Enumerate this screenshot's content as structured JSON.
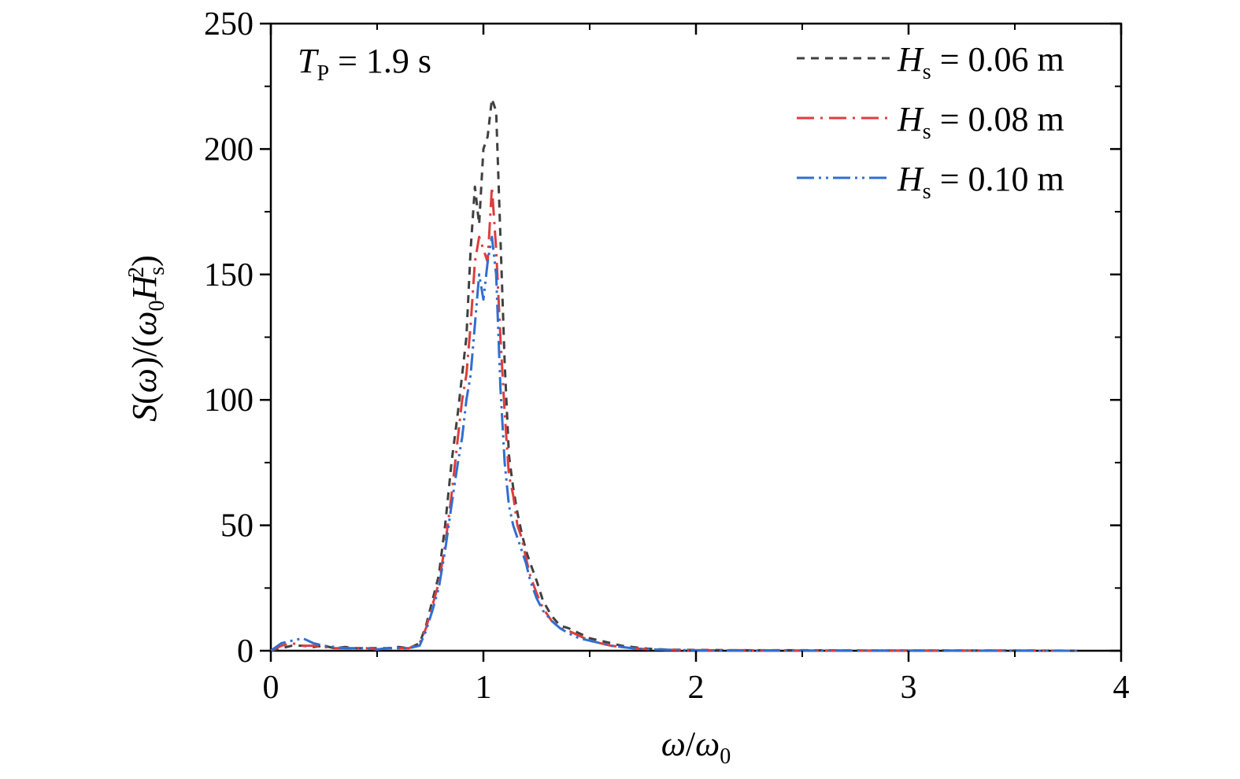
{
  "chart_data": {
    "type": "line",
    "xlabel": {
      "var": "ω",
      "slash": "/",
      "var2": "ω",
      "sub2": "0"
    },
    "ylabel": {
      "a": "S",
      "b": "(",
      "c": "ω",
      "d": ")/(",
      "e": "ω",
      "f": "0",
      "g": "H",
      "h": "s",
      "i": "2",
      "j": ")"
    },
    "xlim": [
      0,
      4
    ],
    "ylim": [
      0,
      250
    ],
    "xticks": [
      0,
      1,
      2,
      3,
      4
    ],
    "yticks": [
      0,
      50,
      100,
      150,
      200,
      250
    ],
    "xtick_labels": [
      "0",
      "1",
      "2",
      "3",
      "4"
    ],
    "ytick_labels": [
      "0",
      "50",
      "100",
      "150",
      "200",
      "250"
    ],
    "grid": false,
    "legend_position": "top-right",
    "annotation": {
      "var": "T",
      "sub": "P",
      "rest": " = 1.9 s"
    },
    "series": [
      {
        "name": "Hs = 0.06 m",
        "legend": {
          "var": "H",
          "sub": "s",
          "rest": " = 0.06 m"
        },
        "color": "#404040",
        "dash": "10,8",
        "x": [
          0,
          0.05,
          0.1,
          0.15,
          0.2,
          0.25,
          0.3,
          0.35,
          0.4,
          0.45,
          0.5,
          0.55,
          0.6,
          0.65,
          0.7,
          0.73,
          0.76,
          0.79,
          0.82,
          0.85,
          0.88,
          0.9,
          0.92,
          0.94,
          0.96,
          0.98,
          1.0,
          1.02,
          1.04,
          1.06,
          1.08,
          1.1,
          1.12,
          1.14,
          1.16,
          1.18,
          1.2,
          1.22,
          1.25,
          1.28,
          1.32,
          1.36,
          1.4,
          1.45,
          1.5,
          1.55,
          1.6,
          1.65,
          1.7,
          1.75,
          1.8,
          1.85,
          1.9,
          2.0,
          2.2,
          2.5,
          2.8,
          3.0,
          3.2,
          3.5,
          3.8
        ],
        "y": [
          0,
          1,
          2,
          2,
          1.5,
          2,
          1,
          1.5,
          1,
          1,
          1,
          1,
          1.5,
          1,
          3,
          10,
          20,
          30,
          50,
          75,
          95,
          110,
          125,
          160,
          185,
          170,
          200,
          205,
          220,
          215,
          165,
          115,
          78,
          65,
          55,
          47,
          40,
          35,
          28,
          20,
          14,
          10,
          9,
          7,
          5,
          4,
          3,
          2,
          1.5,
          1,
          0.7,
          0.5,
          0.4,
          0.3,
          0.2,
          0.2,
          0.1,
          0.1,
          0.1,
          0.1,
          0
        ]
      },
      {
        "name": "Hs = 0.08 m",
        "legend": {
          "var": "H",
          "sub": "s",
          "rest": " = 0.08 m"
        },
        "color": "#e03c3c",
        "dash": "22,8,3,8",
        "x": [
          0,
          0.05,
          0.1,
          0.15,
          0.2,
          0.25,
          0.3,
          0.35,
          0.4,
          0.45,
          0.5,
          0.55,
          0.6,
          0.65,
          0.7,
          0.73,
          0.76,
          0.79,
          0.82,
          0.85,
          0.88,
          0.9,
          0.92,
          0.94,
          0.96,
          0.98,
          1.0,
          1.02,
          1.04,
          1.06,
          1.08,
          1.1,
          1.12,
          1.14,
          1.16,
          1.18,
          1.2,
          1.22,
          1.25,
          1.28,
          1.32,
          1.36,
          1.4,
          1.45,
          1.5,
          1.55,
          1.6,
          1.65,
          1.7,
          1.75,
          1.8,
          1.85,
          1.9,
          2.0,
          2.2,
          2.5,
          2.8,
          3.0,
          3.2,
          3.5,
          3.8
        ],
        "y": [
          0,
          2,
          3,
          2,
          2,
          1.5,
          1,
          1,
          1,
          1,
          0.5,
          1,
          1,
          1,
          3,
          9,
          18,
          27,
          42,
          62,
          85,
          100,
          110,
          130,
          155,
          165,
          160,
          155,
          185,
          160,
          125,
          95,
          70,
          62,
          50,
          45,
          37,
          30,
          23,
          17,
          12,
          9,
          8,
          6,
          4,
          3,
          2,
          1.5,
          1,
          0.7,
          0.5,
          0.4,
          0.3,
          0.2,
          0.2,
          0.1,
          0.1,
          0.1,
          0.1,
          0.1,
          0
        ]
      },
      {
        "name": "Hs = 0.10 m",
        "legend": {
          "var": "H",
          "sub": "s",
          "rest": " = 0.10 m"
        },
        "color": "#2f6fd0",
        "dash": "22,6,3,6,3,6",
        "x": [
          0,
          0.05,
          0.1,
          0.15,
          0.2,
          0.25,
          0.3,
          0.35,
          0.4,
          0.45,
          0.5,
          0.55,
          0.6,
          0.65,
          0.7,
          0.73,
          0.76,
          0.79,
          0.82,
          0.85,
          0.88,
          0.9,
          0.92,
          0.94,
          0.96,
          0.98,
          1.0,
          1.02,
          1.04,
          1.06,
          1.08,
          1.1,
          1.12,
          1.14,
          1.16,
          1.18,
          1.2,
          1.22,
          1.25,
          1.28,
          1.32,
          1.36,
          1.4,
          1.45,
          1.5,
          1.55,
          1.6,
          1.65,
          1.7,
          1.75,
          1.8,
          1.85,
          1.9,
          2.0,
          2.2,
          2.5,
          2.8,
          3.0,
          3.2,
          3.5,
          3.8
        ],
        "y": [
          0,
          3,
          4,
          5,
          3,
          2,
          1.5,
          1,
          1,
          1,
          0.5,
          1,
          1,
          1,
          2,
          8,
          16,
          25,
          40,
          58,
          75,
          85,
          100,
          110,
          130,
          150,
          140,
          155,
          165,
          150,
          105,
          75,
          58,
          50,
          45,
          40,
          35,
          28,
          21,
          16,
          12,
          9,
          7,
          5,
          4,
          3,
          2,
          1.5,
          1,
          0.7,
          0.5,
          0.4,
          0.3,
          0.2,
          0.1,
          0.1,
          0.1,
          0.1,
          0.1,
          0,
          0
        ]
      }
    ]
  }
}
